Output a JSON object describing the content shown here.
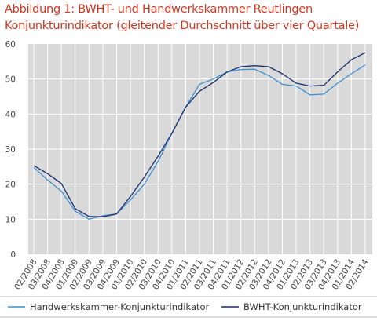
{
  "chart_data": {
    "type": "line",
    "title_lines": [
      "Abbildung 1: BWHT- und Handwerkskammer  Reutlingen",
      "Konjunkturindikator (gleitender Durchschnitt über vier Quartale)"
    ],
    "categories": [
      "02/2008",
      "03/2008",
      "04/2008",
      "01/2009",
      "02/2009",
      "03/2009",
      "04/2009",
      "01/2010",
      "02/2010",
      "03/2010",
      "04/2010",
      "01/2011",
      "02/2011",
      "03/2011",
      "04/2011",
      "01/2012",
      "02/2012",
      "03/2012",
      "04/2012",
      "01/2013",
      "02/2013",
      "03/2013",
      "04/2013",
      "01/2014",
      "02/2014"
    ],
    "ylim": [
      0,
      60
    ],
    "yticks": [
      0,
      10,
      20,
      30,
      40,
      50,
      60
    ],
    "grid": true,
    "legend_position": "bottom",
    "series": [
      {
        "name": "Handwerkskammer-Konjunkturindikator",
        "color": "#3d8fd1",
        "values": [
          24.8,
          21.2,
          18.0,
          12.3,
          10.0,
          11.0,
          11.5,
          15.5,
          20.0,
          26.5,
          34.5,
          42.0,
          48.5,
          50.0,
          52.0,
          52.7,
          52.8,
          51.0,
          48.5,
          48.0,
          45.5,
          45.7,
          48.8,
          51.5,
          54.0
        ]
      },
      {
        "name": "BWHT-Konjunkturindikator",
        "color": "#1a2e6b",
        "values": [
          25.3,
          23.0,
          20.2,
          13.0,
          10.8,
          10.7,
          11.5,
          16.5,
          22.0,
          28.0,
          34.5,
          42.0,
          46.5,
          49.0,
          52.0,
          53.5,
          53.8,
          53.5,
          51.5,
          48.8,
          48.0,
          48.2,
          52.0,
          55.5,
          57.5
        ]
      }
    ]
  }
}
